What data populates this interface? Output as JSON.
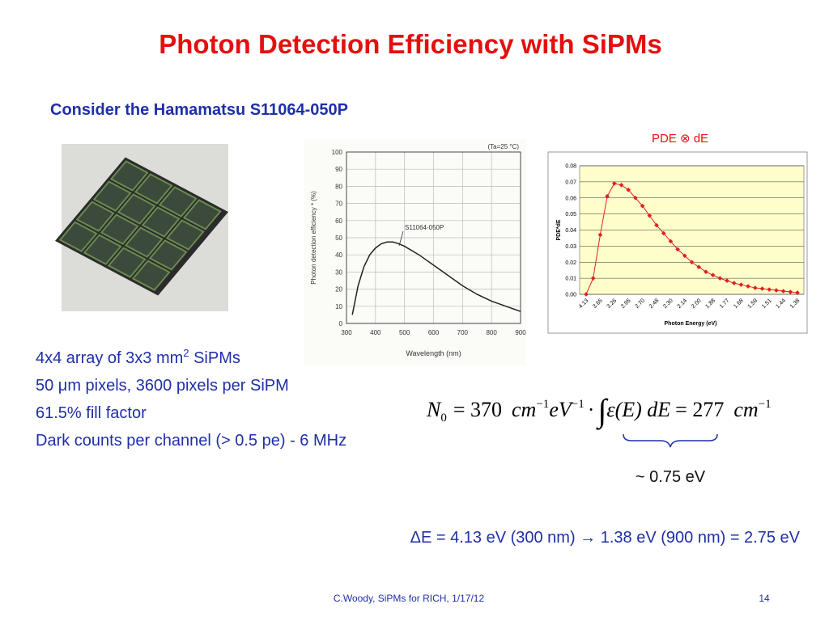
{
  "title": "Photon Detection Efficiency with SiPMs",
  "subtitle": "Consider the Hamamatsu S11064-050P",
  "specs": [
    {
      "text": "4x4 array of 3x3 mm",
      "sup": "2",
      "after": " SiPMs"
    },
    {
      "text": "50 μm pixels, 3600 pixels per SiPM"
    },
    {
      "text": "61.5% fill factor"
    },
    {
      "text": "Dark counts per channel (> 0.5 pe) - 6 MHz"
    }
  ],
  "chart_data": [
    {
      "type": "line",
      "annotation": "(Ta=25 °C)",
      "curve_label": "S11064-050P",
      "xlabel": "Wavelength (nm)",
      "ylabel": "Photon detection efficiency * (%)",
      "x": [
        320,
        340,
        360,
        380,
        400,
        420,
        440,
        460,
        480,
        500,
        550,
        600,
        650,
        700,
        750,
        800,
        850,
        900
      ],
      "values": [
        5,
        22,
        33,
        40,
        44,
        46.5,
        47.5,
        47.5,
        46.5,
        45,
        40,
        34,
        28,
        22,
        17,
        13,
        10,
        7
      ],
      "color": "#222222",
      "xlim": [
        300,
        900
      ],
      "xticks": [
        300,
        400,
        500,
        600,
        700,
        800,
        900
      ],
      "ylim": [
        0,
        100
      ],
      "yticks": [
        0,
        10,
        20,
        30,
        40,
        50,
        60,
        70,
        80,
        90,
        100
      ],
      "grid": true,
      "markers": false
    },
    {
      "type": "line",
      "title": "PDE ⊗ dE",
      "xlabel": "Photon Energy (eV)",
      "ylabel": "PDE*dE",
      "categories": [
        "4.13",
        null,
        "3.65",
        null,
        "3.26",
        null,
        "2.95",
        null,
        "2.70",
        null,
        "2.48",
        null,
        "2.30",
        null,
        "2.14",
        null,
        "2.00",
        null,
        "1.88",
        null,
        "1.77",
        null,
        "1.68",
        null,
        "1.59",
        null,
        "1.51",
        null,
        "1.44",
        null,
        "1.38"
      ],
      "values": [
        0.0,
        0.01,
        0.037,
        0.061,
        0.069,
        0.068,
        0.065,
        0.06,
        0.055,
        0.049,
        0.043,
        0.038,
        0.033,
        0.028,
        0.024,
        0.02,
        0.017,
        0.014,
        0.012,
        0.01,
        0.0085,
        0.007,
        0.006,
        0.005,
        0.004,
        0.0035,
        0.003,
        0.0025,
        0.002,
        0.0015,
        0.001
      ],
      "color": "#e02020",
      "ylim": [
        0,
        0.08
      ],
      "yticks": [
        {
          "value": 0,
          "label": "0.00"
        },
        {
          "value": 0.01,
          "label": "0.01"
        },
        {
          "value": 0.02,
          "label": "0.02"
        },
        {
          "value": 0.03,
          "label": "0.03"
        },
        {
          "value": 0.04,
          "label": "0.04"
        },
        {
          "value": 0.05,
          "label": "0.05"
        },
        {
          "value": 0.06,
          "label": "0.06"
        },
        {
          "value": 0.07,
          "label": "0.07"
        },
        {
          "value": 0.08,
          "label": "0.08"
        }
      ],
      "grid": true,
      "markers": true,
      "background": "#ffffcc"
    }
  ],
  "equation": {
    "n": "N",
    "n_sub": "0",
    "eq1": "= 370",
    "unit1": "cm",
    "unit1_exp": "−1",
    "unit2": "eV",
    "unit2_exp": "−1",
    "dot": "·",
    "integral": "∫",
    "integrand": "ε(E) dE",
    "eq2": "= 277",
    "unit3": "cm",
    "unit3_exp": "−1"
  },
  "brace_label": "~ 0.75 eV",
  "delta_e": "ΔE = 4.13 eV (300 nm) → 1.38 eV (900 nm) = 2.75 eV",
  "footer": "C.Woody, SiPMs for RICH, 1/17/12",
  "page_number": "14"
}
